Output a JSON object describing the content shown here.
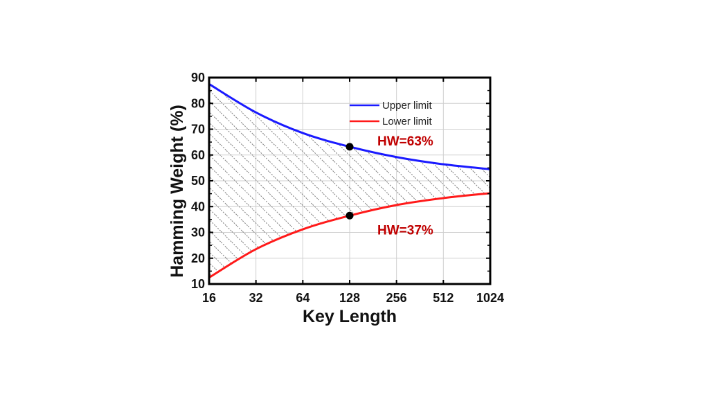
{
  "chart_data": {
    "type": "line",
    "xlabel": "Key Length",
    "ylabel": "Hamming Weight (%)",
    "x_scale": "log2",
    "x": [
      16,
      32,
      64,
      128,
      256,
      512,
      1024
    ],
    "x_tick_labels": [
      "16",
      "32",
      "64",
      "128",
      "256",
      "512",
      "1024"
    ],
    "ylim": [
      10,
      90
    ],
    "y_ticks": [
      10,
      20,
      30,
      40,
      50,
      60,
      70,
      80,
      90
    ],
    "y_tick_labels": [
      "10",
      "20",
      "30",
      "40",
      "50",
      "60",
      "70",
      "80",
      "90"
    ],
    "grid": true,
    "legend_position": "top-right",
    "series": [
      {
        "name": "Upper limit",
        "color": "#1a1aff",
        "values": [
          87.5,
          76.5,
          68.5,
          63.2,
          59.2,
          56.4,
          54.5
        ]
      },
      {
        "name": "Lower limit",
        "color": "#ff1a1a",
        "values": [
          12.5,
          23.5,
          31.2,
          36.5,
          40.6,
          43.3,
          45.2
        ]
      }
    ],
    "fill_between": {
      "pattern": "diagonal-hatch",
      "color": "#777777"
    },
    "annotations": [
      {
        "text": "HW=63%",
        "x": 128,
        "y": 63.2,
        "color": "#c00000",
        "marker": "dot"
      },
      {
        "text": "HW=37%",
        "x": 128,
        "y": 36.5,
        "color": "#c00000",
        "marker": "dot"
      }
    ]
  }
}
